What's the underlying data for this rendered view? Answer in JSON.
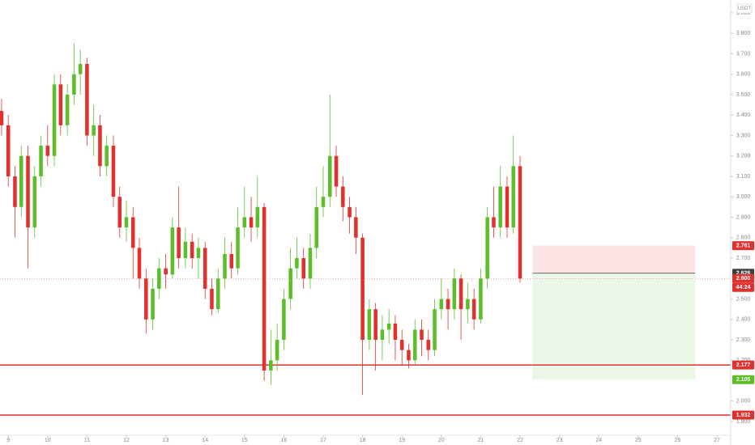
{
  "chart_data": {
    "type": "candlestick",
    "currency": "USDT",
    "up_color": "#5cbf2a",
    "down_color": "#e0312f",
    "xlim": [
      8.79,
      27.35
    ],
    "ylim": [
      1.833,
      3.963
    ],
    "xticks": [
      9,
      10,
      11,
      12,
      13,
      14,
      15,
      16,
      17,
      18,
      19,
      20,
      21,
      22,
      23,
      24,
      25,
      26,
      27
    ],
    "yticks": [
      {
        "value": 1.9,
        "label": "1.900"
      },
      {
        "value": 2.0,
        "label": "2.000"
      },
      {
        "value": 2.2,
        "label": "2.200"
      },
      {
        "value": 2.3,
        "label": "2.300"
      },
      {
        "value": 2.4,
        "label": "2.400"
      },
      {
        "value": 2.5,
        "label": "2.500"
      },
      {
        "value": 2.7,
        "label": "2.700"
      },
      {
        "value": 2.8,
        "label": "2.800"
      },
      {
        "value": 2.9,
        "label": "2.900"
      },
      {
        "value": 3.0,
        "label": "3.000"
      },
      {
        "value": 3.1,
        "label": "3.100"
      },
      {
        "value": 3.2,
        "label": "3.200"
      },
      {
        "value": 3.3,
        "label": "3.300"
      },
      {
        "value": 3.4,
        "label": "3.400"
      },
      {
        "value": 3.5,
        "label": "3.500"
      },
      {
        "value": 3.6,
        "label": "3.600"
      },
      {
        "value": 3.7,
        "label": "3.700"
      },
      {
        "value": 3.8,
        "label": "3.800"
      },
      {
        "value": 3.9,
        "label": "3.900"
      }
    ],
    "x": [
      8.83,
      9,
      9.17,
      9.33,
      9.5,
      9.67,
      9.83,
      10,
      10.17,
      10.33,
      10.5,
      10.67,
      10.83,
      11,
      11.17,
      11.33,
      11.5,
      11.67,
      11.83,
      12,
      12.17,
      12.33,
      12.5,
      12.67,
      12.83,
      13,
      13.17,
      13.33,
      13.5,
      13.67,
      13.83,
      14,
      14.17,
      14.33,
      14.5,
      14.67,
      14.83,
      15,
      15.17,
      15.33,
      15.5,
      15.67,
      15.83,
      16,
      16.17,
      16.33,
      16.5,
      16.67,
      16.83,
      17,
      17.17,
      17.33,
      17.5,
      17.67,
      17.83,
      18,
      18.17,
      18.33,
      18.5,
      18.67,
      18.83,
      19,
      19.17,
      19.33,
      19.5,
      19.67,
      19.83,
      20,
      20.17,
      20.33,
      20.5,
      20.67,
      20.83,
      21,
      21.17,
      21.33,
      21.5,
      21.67,
      21.83,
      22
    ],
    "open": [
      3.42,
      3.35,
      3.1,
      2.95,
      3.2,
      2.85,
      3.1,
      3.25,
      3.2,
      3.55,
      3.35,
      3.5,
      3.6,
      3.65,
      3.3,
      3.35,
      3.15,
      3.25,
      3.0,
      2.85,
      2.9,
      2.75,
      2.6,
      2.4,
      2.55,
      2.65,
      2.62,
      2.85,
      2.7,
      2.78,
      2.7,
      2.75,
      2.55,
      2.45,
      2.6,
      2.72,
      2.65,
      2.85,
      2.9,
      2.85,
      2.95,
      2.15,
      2.2,
      2.3,
      2.5,
      2.65,
      2.7,
      2.6,
      2.75,
      2.95,
      3.0,
      3.2,
      3.05,
      2.95,
      2.9,
      2.8,
      2.3,
      2.45,
      2.3,
      2.35,
      2.38,
      2.3,
      2.25,
      2.2,
      2.35,
      2.3,
      2.25,
      2.45,
      2.5,
      2.45,
      2.6,
      2.45,
      2.5,
      2.4,
      2.6,
      2.9,
      2.85,
      3.05,
      2.85,
      3.15
    ],
    "high": [
      3.48,
      3.4,
      3.15,
      3.25,
      3.25,
      3.15,
      3.3,
      3.35,
      3.6,
      3.6,
      3.55,
      3.75,
      3.72,
      3.68,
      3.45,
      3.4,
      3.3,
      3.3,
      3.05,
      2.98,
      2.95,
      2.8,
      2.65,
      2.6,
      2.7,
      2.72,
      2.9,
      3.05,
      2.85,
      2.82,
      2.8,
      2.78,
      2.6,
      2.65,
      2.8,
      2.78,
      2.95,
      3.05,
      3.0,
      3.1,
      2.97,
      2.35,
      2.38,
      2.55,
      2.75,
      2.8,
      2.75,
      2.82,
      3.05,
      3.15,
      3.5,
      3.25,
      3.1,
      3.0,
      2.95,
      2.82,
      2.5,
      2.48,
      2.42,
      2.45,
      2.42,
      2.35,
      2.28,
      2.4,
      2.4,
      2.35,
      2.5,
      2.6,
      2.55,
      2.65,
      2.62,
      2.58,
      2.55,
      2.65,
      2.95,
      3.05,
      3.15,
      3.1,
      3.3,
      3.2
    ],
    "low": [
      3.3,
      3.05,
      2.8,
      2.9,
      2.65,
      2.8,
      3.05,
      3.15,
      3.15,
      3.3,
      3.3,
      3.45,
      3.5,
      3.25,
      3.2,
      3.1,
      3.1,
      2.95,
      2.8,
      2.78,
      2.6,
      2.55,
      2.33,
      2.35,
      2.5,
      2.55,
      2.6,
      2.65,
      2.65,
      2.65,
      2.6,
      2.5,
      2.42,
      2.43,
      2.55,
      2.6,
      2.62,
      2.8,
      2.78,
      2.8,
      2.1,
      2.08,
      2.15,
      2.25,
      2.45,
      2.6,
      2.55,
      2.55,
      2.7,
      2.9,
      2.95,
      3.0,
      2.88,
      2.82,
      2.72,
      2.03,
      2.25,
      2.15,
      2.2,
      2.28,
      2.2,
      2.18,
      2.16,
      2.18,
      2.22,
      2.2,
      2.22,
      2.4,
      2.35,
      2.4,
      2.3,
      2.38,
      2.35,
      2.38,
      2.55,
      2.8,
      2.8,
      2.8,
      2.82,
      2.58
    ],
    "close": [
      3.35,
      3.1,
      2.95,
      3.2,
      2.85,
      3.1,
      3.25,
      3.2,
      3.55,
      3.35,
      3.5,
      3.6,
      3.65,
      3.3,
      3.35,
      3.15,
      3.25,
      3.0,
      2.85,
      2.9,
      2.75,
      2.6,
      2.4,
      2.55,
      2.65,
      2.62,
      2.85,
      2.7,
      2.78,
      2.7,
      2.75,
      2.55,
      2.45,
      2.6,
      2.72,
      2.65,
      2.85,
      2.9,
      2.85,
      2.95,
      2.15,
      2.2,
      2.3,
      2.5,
      2.65,
      2.7,
      2.6,
      2.75,
      2.95,
      3.0,
      3.2,
      3.05,
      2.95,
      2.9,
      2.8,
      2.3,
      2.45,
      2.3,
      2.35,
      2.38,
      2.3,
      2.25,
      2.2,
      2.35,
      2.3,
      2.25,
      2.45,
      2.5,
      2.45,
      2.6,
      2.45,
      2.5,
      2.4,
      2.6,
      2.9,
      2.85,
      3.05,
      2.85,
      3.15,
      2.6
    ],
    "last_price": {
      "value": 2.6,
      "label": "2.600"
    },
    "countdown": "44:24",
    "position": {
      "x_start": 22.32,
      "x_end": 26.45,
      "entry": 2.626,
      "stop": 2.761,
      "target": 2.105
    },
    "lines": [
      {
        "value": 2.177,
        "color": "#e0312f"
      },
      {
        "value": 1.932,
        "color": "#e0312f"
      }
    ]
  }
}
